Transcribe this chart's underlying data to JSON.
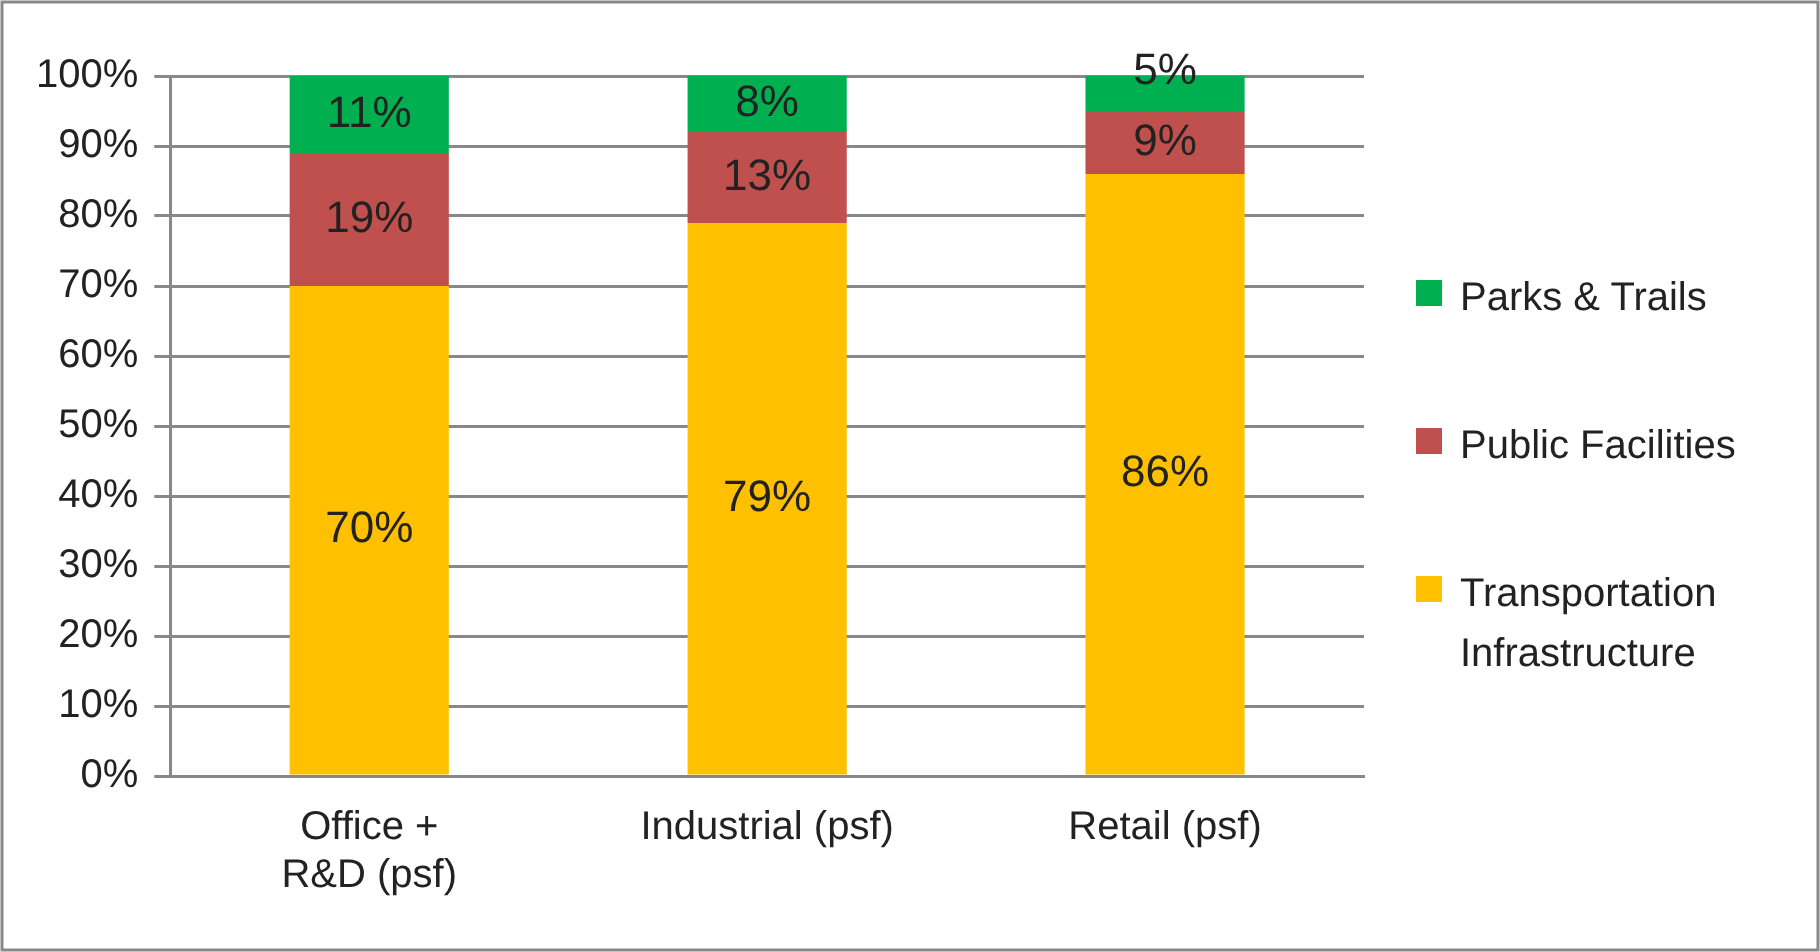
{
  "chart_data": {
    "type": "bar",
    "stacked": true,
    "categories": [
      "Office + R&D (psf)",
      "Industrial (psf)",
      "Retail (psf)"
    ],
    "series": [
      {
        "name": "Transportation Infrastructure",
        "color": "#ffc000",
        "values": [
          70,
          79,
          86
        ],
        "value_labels": [
          "70%",
          "79%",
          "86%"
        ]
      },
      {
        "name": "Public Facilities",
        "color": "#c0504d",
        "values": [
          19,
          13,
          9
        ],
        "value_labels": [
          "19%",
          "13%",
          "9%"
        ]
      },
      {
        "name": "Parks & Trails",
        "color": "#00b050",
        "values": [
          11,
          8,
          5
        ],
        "value_labels": [
          "11%",
          "8%",
          "5%"
        ]
      }
    ],
    "ylim": [
      0,
      100
    ],
    "yticks": [
      {
        "value": 0,
        "label": "0%"
      },
      {
        "value": 10,
        "label": "10%"
      },
      {
        "value": 20,
        "label": "20%"
      },
      {
        "value": 30,
        "label": "30%"
      },
      {
        "value": 40,
        "label": "40%"
      },
      {
        "value": 50,
        "label": "50%"
      },
      {
        "value": 60,
        "label": "60%"
      },
      {
        "value": 70,
        "label": "70%"
      },
      {
        "value": 80,
        "label": "80%"
      },
      {
        "value": 90,
        "label": "90%"
      },
      {
        "value": 100,
        "label": "100%"
      }
    ],
    "grid": "y",
    "legend": "right"
  }
}
